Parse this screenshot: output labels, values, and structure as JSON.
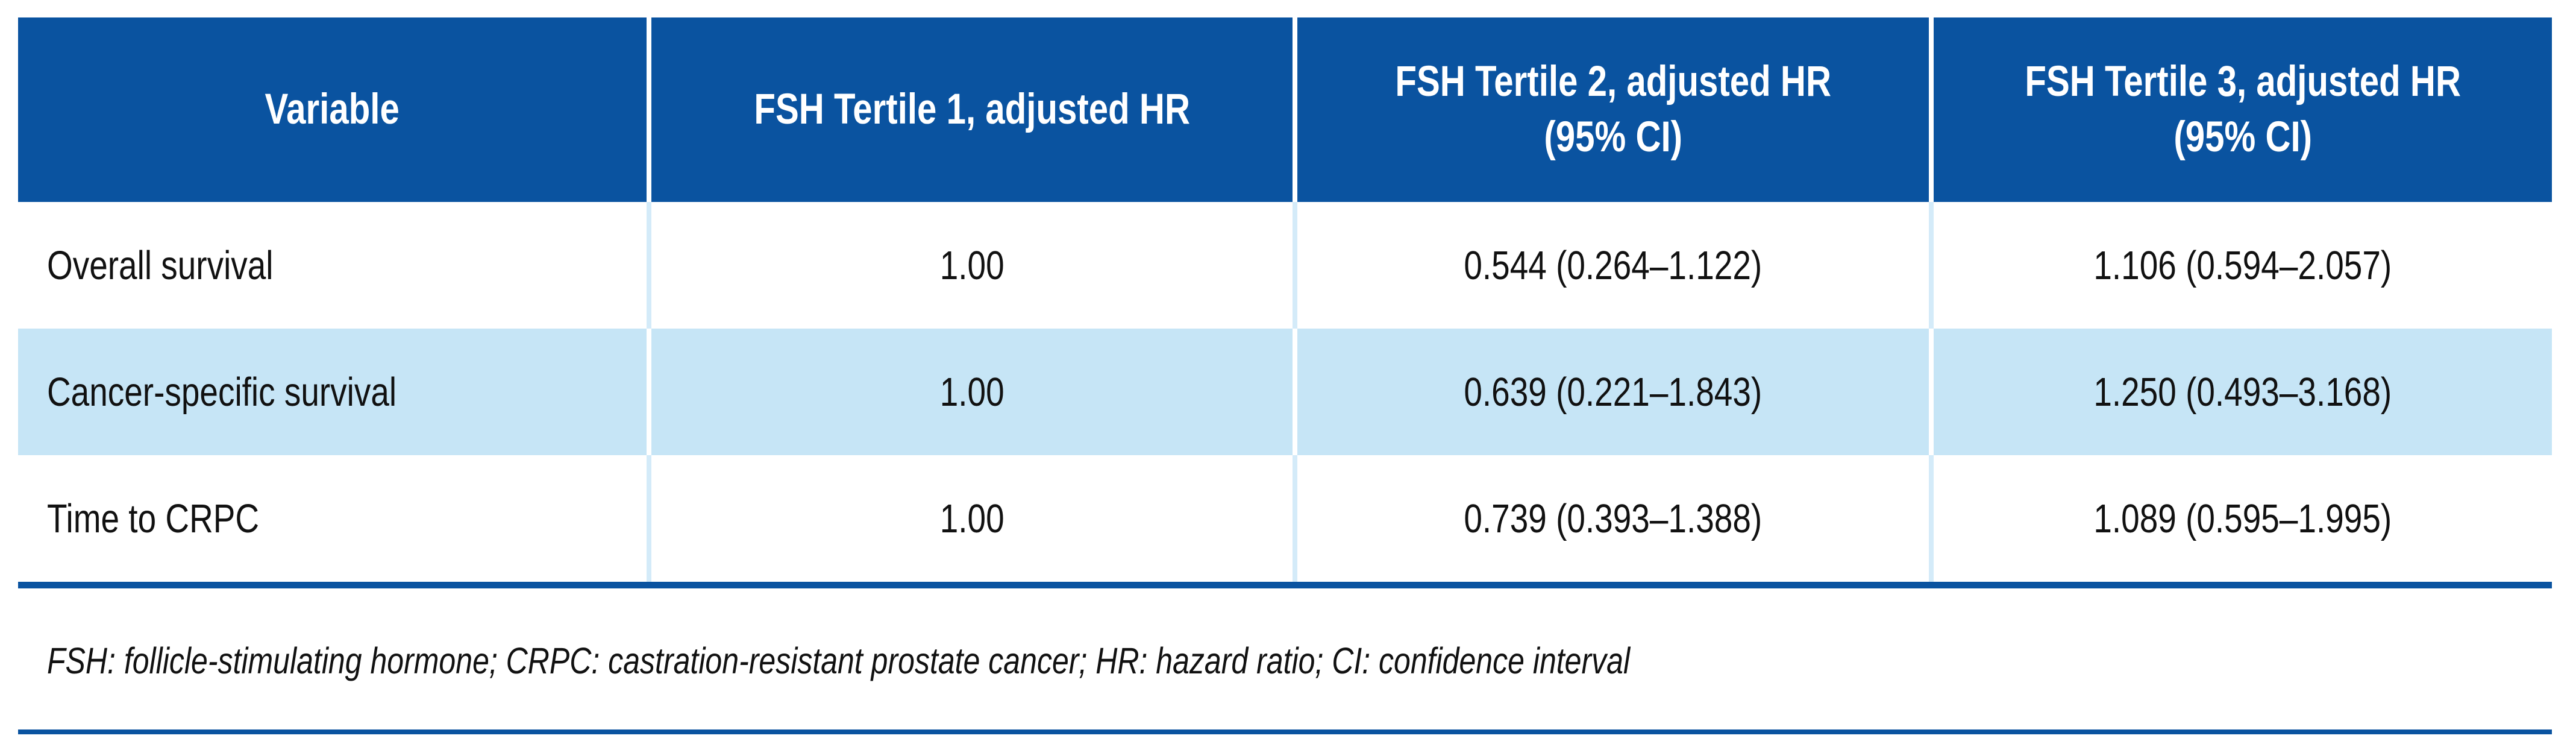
{
  "colors": {
    "header-bg": "#0a53a0",
    "header-text": "#ffffff",
    "row-alt-bg": "#c6e5f6",
    "grid-line": "#d4ebf9",
    "rule": "#0a53a0",
    "body-text": "#111111"
  },
  "table": {
    "columns": [
      {
        "label": "Variable"
      },
      {
        "label": "FSH Tertile 1, adjusted HR"
      },
      {
        "label": "FSH Tertile 2, adjusted HR\n(95% CI)"
      },
      {
        "label": "FSH Tertile 3, adjusted HR\n(95% CI)"
      }
    ],
    "rows": [
      {
        "variable": "Overall survival",
        "tertile1": "1.00",
        "tertile2": "0.544 (0.264–1.122)",
        "tertile3": "1.106 (0.594–2.057)"
      },
      {
        "variable": "Cancer-specific survival",
        "tertile1": "1.00",
        "tertile2": "0.639 (0.221–1.843)",
        "tertile3": "1.250 (0.493–3.168)"
      },
      {
        "variable": "Time to CRPC",
        "tertile1": "1.00",
        "tertile2": "0.739 (0.393–1.388)",
        "tertile3": "1.089 (0.595–1.995)"
      }
    ]
  },
  "footnote": "FSH: follicle-stimulating hormone; CRPC: castration-resistant prostate cancer; HR: hazard ratio; CI: confidence interval"
}
